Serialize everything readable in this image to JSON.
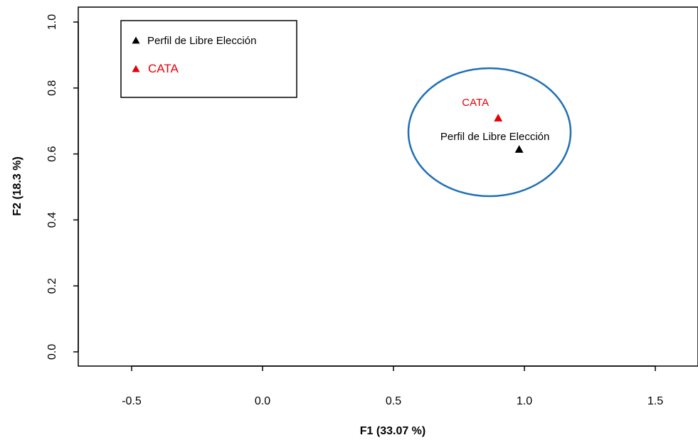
{
  "chart_data": {
    "type": "scatter",
    "xlabel": "F1 (33.07 %)",
    "ylabel": "F2 (18.3 %)",
    "xlim": [
      -0.7,
      1.7
    ],
    "ylim": [
      0.0,
      1.0
    ],
    "x_ticks": [
      -0.5,
      0.0,
      0.5,
      1.0,
      1.5
    ],
    "x_tick_labels": [
      "-0.5",
      "0.0",
      "0.5",
      "1.0",
      "1.5"
    ],
    "y_ticks": [
      0.0,
      0.2,
      0.4,
      0.6,
      0.8,
      1.0
    ],
    "y_tick_labels": [
      "0.0",
      "0.2",
      "0.4",
      "0.6",
      "0.8",
      "1.0"
    ],
    "grid": false,
    "legend_position": "top-left",
    "series": [
      {
        "name": "Perfil de Libre Elección",
        "x": 0.98,
        "y": 0.614,
        "marker": "triangle",
        "color": "#000000",
        "label": "Perfil de Libre Elección"
      },
      {
        "name": "CATA",
        "x": 0.9,
        "y": 0.709,
        "marker": "triangle",
        "color": "#e3000b",
        "label": "CATA"
      }
    ],
    "annotations": [
      {
        "shape": "ellipse",
        "color": "#1f6fb5"
      }
    ]
  }
}
